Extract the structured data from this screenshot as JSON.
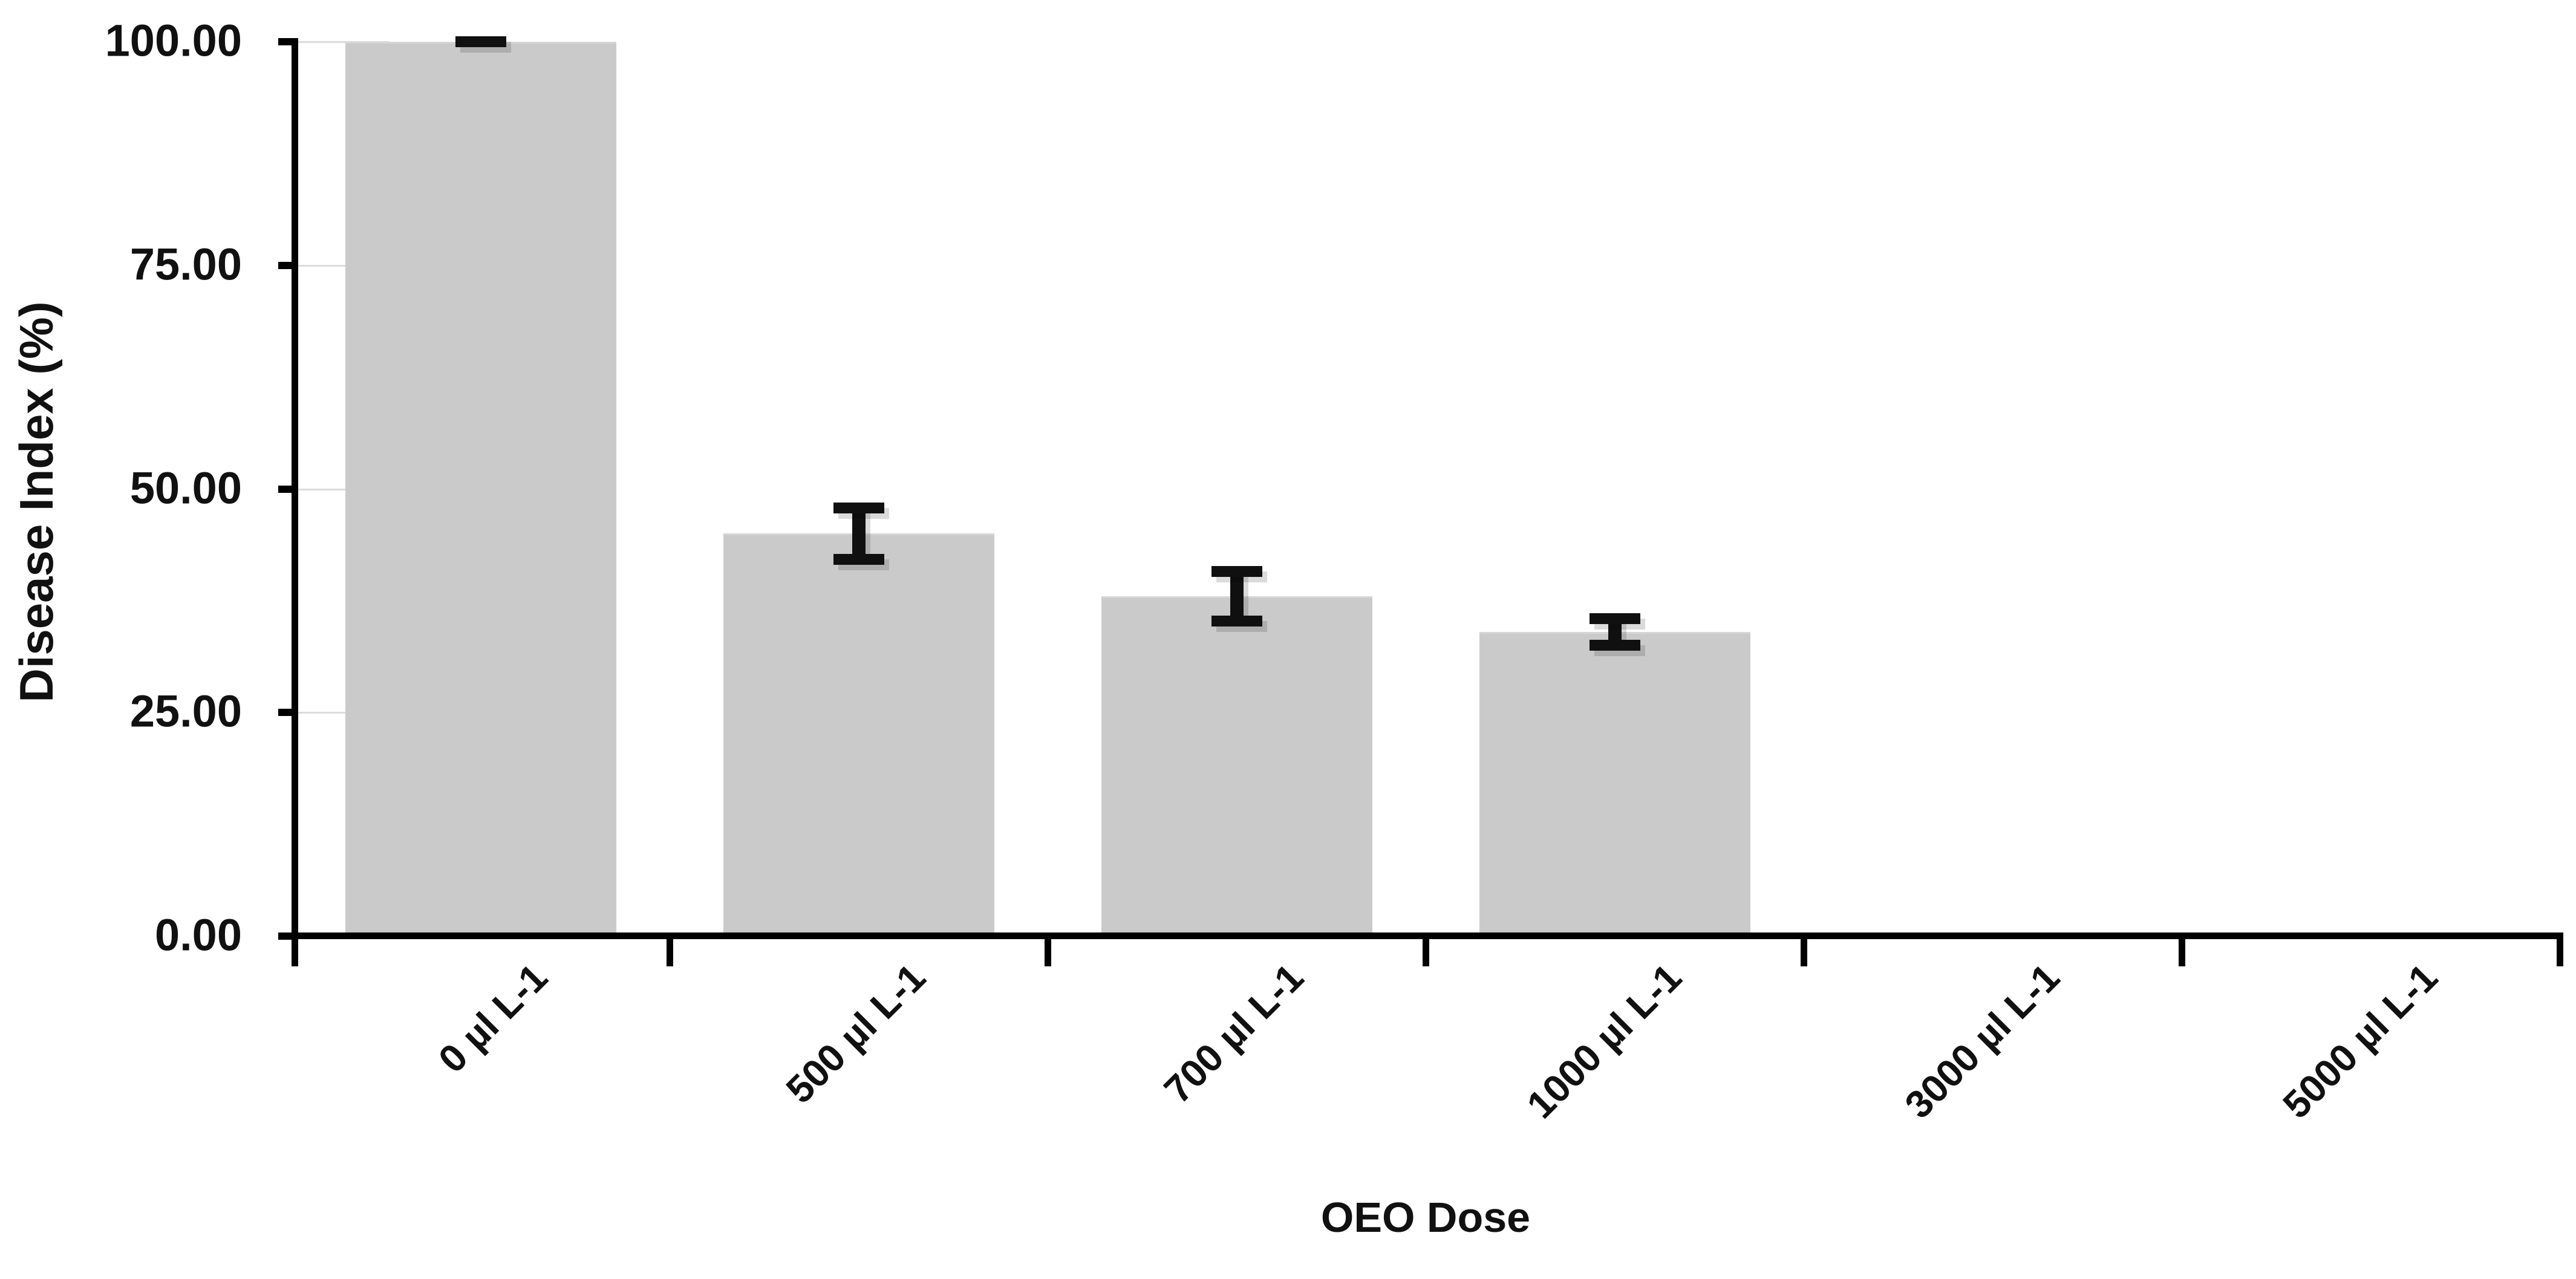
{
  "chart_data": {
    "type": "bar",
    "title": "",
    "xlabel": "OEO Dose",
    "ylabel": "Disease Index (%)",
    "categories": [
      "0 µl L-1",
      "500 µl L-1",
      "700 µl L-1",
      "1000 µl L-1",
      "3000 µl L-1",
      "5000 µl L-1"
    ],
    "values": [
      100,
      45,
      38,
      34,
      0,
      0
    ],
    "errors": [
      0.5,
      2.9,
      2.75,
      1.5,
      0,
      0
    ],
    "y_tick_values": [
      0,
      25,
      50,
      75,
      100
    ],
    "y_tick_labels": [
      "0.00",
      "25.00",
      "50.00",
      "75.00",
      "100.00"
    ],
    "ylim": [
      0,
      100
    ],
    "bar_color": "#cacaca",
    "axis_color": "#000000",
    "error_bar_color": "#101010",
    "text_color": "#111111",
    "background_color": "#ffffff",
    "grid": "off",
    "legend_position": "none",
    "x_tick_label_rotation_deg": -45
  }
}
